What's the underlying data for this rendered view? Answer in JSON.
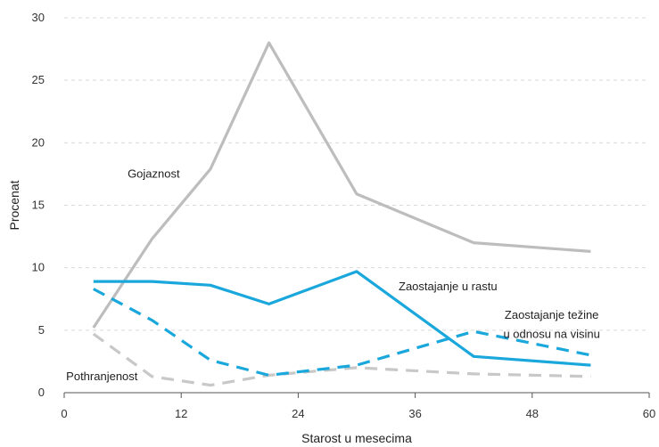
{
  "chart_data": {
    "type": "line",
    "xlabel": "Starost u mesecima",
    "ylabel": "Procenat",
    "xlim": [
      0,
      60
    ],
    "ylim": [
      0,
      30
    ],
    "x_ticks": [
      "0",
      "12",
      "24",
      "36",
      "48",
      "60"
    ],
    "y_ticks": [
      "0",
      "5",
      "10",
      "15",
      "20",
      "25",
      "30"
    ],
    "grid": "horizontal dashed",
    "series": [
      {
        "name": "Gojaznost",
        "color": "#bdbdbd",
        "style": "solid",
        "x": [
          3,
          9,
          15,
          21,
          30,
          42,
          54
        ],
        "y": [
          5.2,
          12.3,
          17.9,
          28.0,
          15.9,
          12.0,
          11.3
        ]
      },
      {
        "name": "Zaostajanje u rastu",
        "color": "#1aa7dc",
        "style": "solid",
        "x": [
          3,
          9,
          15,
          21,
          30,
          42,
          54
        ],
        "y": [
          8.9,
          8.9,
          8.6,
          7.1,
          9.7,
          2.9,
          2.2
        ]
      },
      {
        "name": "Zaostajanje težine\nu odnosu na visinu",
        "color": "#1aa7dc",
        "style": "dashed",
        "x": [
          3,
          9,
          15,
          21,
          30,
          42,
          54
        ],
        "y": [
          8.3,
          5.8,
          2.6,
          1.4,
          2.2,
          4.9,
          3.0
        ]
      },
      {
        "name": "Pothranjenost",
        "color": "#c8c8c8",
        "style": "dashed",
        "x": [
          3,
          9,
          15,
          21,
          30,
          42,
          54
        ],
        "y": [
          4.7,
          1.3,
          0.6,
          1.4,
          2.0,
          1.5,
          1.3
        ]
      }
    ],
    "labels": [
      {
        "text": "Gojaznost",
        "series": 0
      },
      {
        "text": "Zaostajanje u rastu",
        "series": 1
      },
      {
        "text": "Zaostajanje težine",
        "series": 2,
        "line": 1
      },
      {
        "text": "u odnosu na visinu",
        "series": 2,
        "line": 2
      },
      {
        "text": "Pothranjenost",
        "series": 3
      }
    ]
  }
}
